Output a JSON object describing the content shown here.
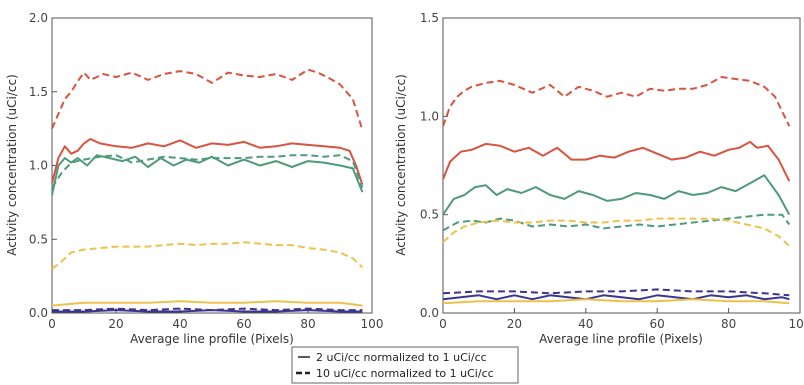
{
  "legend": {
    "entries": [
      {
        "style": "thin-dash",
        "label": "2 uCi/cc normalized to 1 uCi/cc"
      },
      {
        "style": "thick-dash",
        "label": "10 uCi/cc normalized to 1 uCi/cc"
      }
    ]
  },
  "colors": {
    "red": "#d9533f",
    "green": "#4e9a7a",
    "yellow": "#ecc24a",
    "blue": "#3b3590",
    "axis": "#555555"
  },
  "chart_data": [
    {
      "type": "line",
      "xlabel": "Average line profile (Pixels)",
      "ylabel": "Activity concentration (uCi/cc)",
      "xlim": [
        0,
        100
      ],
      "ylim": [
        0,
        2.0
      ],
      "xticks": [
        0,
        20,
        40,
        60,
        80,
        100
      ],
      "yticks": [
        "0.0",
        "0.5",
        "1.0",
        "1.5",
        "2.0"
      ],
      "series": [
        {
          "color": "red",
          "dash": true,
          "x": [
            0,
            2,
            4,
            6,
            8,
            10,
            12,
            14,
            16,
            20,
            25,
            30,
            35,
            40,
            45,
            50,
            55,
            60,
            65,
            70,
            75,
            80,
            83,
            86,
            90,
            94,
            97
          ],
          "y": [
            1.25,
            1.35,
            1.45,
            1.5,
            1.57,
            1.63,
            1.58,
            1.6,
            1.62,
            1.6,
            1.63,
            1.58,
            1.62,
            1.64,
            1.62,
            1.56,
            1.63,
            1.61,
            1.6,
            1.62,
            1.58,
            1.65,
            1.63,
            1.6,
            1.55,
            1.45,
            1.24
          ]
        },
        {
          "color": "red",
          "dash": false,
          "x": [
            0,
            2,
            4,
            6,
            8,
            10,
            12,
            15,
            20,
            25,
            30,
            35,
            40,
            45,
            50,
            55,
            60,
            65,
            70,
            75,
            80,
            85,
            90,
            93,
            95,
            97
          ],
          "y": [
            0.88,
            1.05,
            1.13,
            1.08,
            1.1,
            1.15,
            1.18,
            1.15,
            1.13,
            1.12,
            1.15,
            1.13,
            1.17,
            1.12,
            1.15,
            1.14,
            1.16,
            1.12,
            1.13,
            1.15,
            1.14,
            1.13,
            1.12,
            1.1,
            1.0,
            0.87
          ]
        },
        {
          "color": "green",
          "dash": true,
          "x": [
            0,
            3,
            6,
            10,
            15,
            20,
            25,
            30,
            35,
            40,
            45,
            50,
            55,
            60,
            65,
            70,
            75,
            80,
            85,
            90,
            94,
            97
          ],
          "y": [
            0.85,
            0.95,
            1.02,
            1.04,
            1.06,
            1.07,
            1.02,
            1.04,
            1.06,
            1.05,
            1.04,
            1.05,
            1.05,
            1.05,
            1.06,
            1.06,
            1.07,
            1.07,
            1.06,
            1.07,
            1.03,
            0.85
          ]
        },
        {
          "color": "green",
          "dash": false,
          "x": [
            0,
            2,
            4,
            6,
            8,
            11,
            14,
            18,
            22,
            26,
            30,
            34,
            38,
            42,
            46,
            50,
            55,
            60,
            65,
            70,
            75,
            80,
            85,
            90,
            94,
            97
          ],
          "y": [
            0.8,
            1.0,
            1.05,
            1.02,
            1.05,
            1.0,
            1.07,
            1.05,
            1.03,
            1.06,
            0.99,
            1.05,
            1.0,
            1.04,
            1.02,
            1.06,
            1.0,
            1.04,
            1.0,
            1.03,
            0.99,
            1.03,
            1.02,
            1.0,
            0.98,
            0.82
          ]
        },
        {
          "color": "yellow",
          "dash": true,
          "x": [
            0,
            3,
            6,
            10,
            15,
            20,
            25,
            30,
            35,
            40,
            45,
            50,
            55,
            60,
            65,
            70,
            75,
            80,
            85,
            90,
            94,
            97
          ],
          "y": [
            0.3,
            0.35,
            0.41,
            0.43,
            0.44,
            0.45,
            0.45,
            0.45,
            0.46,
            0.47,
            0.46,
            0.47,
            0.47,
            0.48,
            0.47,
            0.46,
            0.46,
            0.44,
            0.43,
            0.41,
            0.37,
            0.31
          ]
        },
        {
          "color": "yellow",
          "dash": false,
          "x": [
            0,
            5,
            10,
            20,
            30,
            40,
            50,
            60,
            70,
            80,
            90,
            97
          ],
          "y": [
            0.05,
            0.06,
            0.07,
            0.07,
            0.07,
            0.08,
            0.07,
            0.07,
            0.08,
            0.07,
            0.07,
            0.05
          ]
        },
        {
          "color": "blue",
          "dash": true,
          "x": [
            0,
            10,
            20,
            30,
            40,
            50,
            60,
            70,
            80,
            90,
            97
          ],
          "y": [
            0.02,
            0.02,
            0.03,
            0.02,
            0.03,
            0.02,
            0.03,
            0.02,
            0.03,
            0.02,
            0.02
          ]
        },
        {
          "color": "blue",
          "dash": false,
          "x": [
            0,
            10,
            20,
            30,
            40,
            50,
            60,
            70,
            80,
            90,
            97
          ],
          "y": [
            0.01,
            0.01,
            0.02,
            0.01,
            0.01,
            0.02,
            0.01,
            0.01,
            0.02,
            0.01,
            0.01
          ]
        }
      ]
    },
    {
      "type": "line",
      "xlabel": "Average line profile (Pixels)",
      "ylabel": "Activity concentration (uCi/cc)",
      "xlim": [
        0,
        100
      ],
      "ylim": [
        0,
        1.5
      ],
      "xticks": [
        0,
        20,
        40,
        60,
        80,
        100
      ],
      "yticks": [
        "0.0",
        "0.5",
        "1.0",
        "1.5"
      ],
      "series": [
        {
          "color": "red",
          "dash": true,
          "x": [
            0,
            2,
            4,
            6,
            8,
            12,
            16,
            20,
            25,
            30,
            34,
            38,
            42,
            46,
            50,
            54,
            58,
            62,
            66,
            70,
            74,
            78,
            82,
            86,
            90,
            93,
            97
          ],
          "y": [
            0.95,
            1.05,
            1.1,
            1.13,
            1.15,
            1.17,
            1.18,
            1.16,
            1.12,
            1.16,
            1.1,
            1.15,
            1.13,
            1.1,
            1.12,
            1.1,
            1.14,
            1.13,
            1.14,
            1.14,
            1.16,
            1.2,
            1.19,
            1.18,
            1.15,
            1.1,
            0.95
          ]
        },
        {
          "color": "red",
          "dash": false,
          "x": [
            0,
            2,
            5,
            8,
            12,
            16,
            20,
            24,
            28,
            32,
            36,
            40,
            44,
            48,
            52,
            56,
            60,
            64,
            68,
            72,
            76,
            80,
            83,
            86,
            88,
            91,
            94,
            97
          ],
          "y": [
            0.68,
            0.77,
            0.82,
            0.83,
            0.86,
            0.85,
            0.82,
            0.84,
            0.8,
            0.84,
            0.78,
            0.78,
            0.8,
            0.79,
            0.82,
            0.84,
            0.81,
            0.78,
            0.79,
            0.82,
            0.8,
            0.83,
            0.84,
            0.87,
            0.84,
            0.85,
            0.78,
            0.67
          ]
        },
        {
          "color": "green",
          "dash": false,
          "x": [
            0,
            3,
            6,
            9,
            12,
            15,
            18,
            22,
            26,
            30,
            34,
            38,
            42,
            46,
            50,
            54,
            58,
            62,
            66,
            70,
            74,
            78,
            82,
            86,
            90,
            94,
            97
          ],
          "y": [
            0.5,
            0.58,
            0.6,
            0.64,
            0.65,
            0.6,
            0.63,
            0.61,
            0.64,
            0.6,
            0.58,
            0.62,
            0.6,
            0.57,
            0.58,
            0.61,
            0.6,
            0.58,
            0.62,
            0.6,
            0.61,
            0.64,
            0.62,
            0.66,
            0.7,
            0.6,
            0.5
          ]
        },
        {
          "color": "green",
          "dash": true,
          "x": [
            0,
            4,
            8,
            12,
            16,
            20,
            25,
            30,
            35,
            40,
            45,
            50,
            55,
            60,
            65,
            70,
            75,
            80,
            85,
            90,
            95,
            97
          ],
          "y": [
            0.42,
            0.46,
            0.47,
            0.46,
            0.48,
            0.47,
            0.44,
            0.45,
            0.44,
            0.45,
            0.43,
            0.44,
            0.45,
            0.44,
            0.45,
            0.46,
            0.47,
            0.48,
            0.49,
            0.5,
            0.5,
            0.45
          ]
        },
        {
          "color": "yellow",
          "dash": true,
          "x": [
            0,
            3,
            6,
            10,
            15,
            20,
            25,
            30,
            35,
            40,
            45,
            50,
            55,
            60,
            65,
            70,
            75,
            80,
            85,
            90,
            94,
            97
          ],
          "y": [
            0.36,
            0.41,
            0.44,
            0.46,
            0.47,
            0.46,
            0.46,
            0.47,
            0.47,
            0.46,
            0.46,
            0.47,
            0.47,
            0.48,
            0.48,
            0.48,
            0.48,
            0.47,
            0.45,
            0.43,
            0.39,
            0.34
          ]
        },
        {
          "color": "blue",
          "dash": true,
          "x": [
            0,
            10,
            20,
            30,
            40,
            50,
            60,
            70,
            80,
            90,
            97
          ],
          "y": [
            0.1,
            0.11,
            0.11,
            0.1,
            0.11,
            0.11,
            0.12,
            0.11,
            0.11,
            0.1,
            0.09
          ]
        },
        {
          "color": "blue",
          "dash": false,
          "x": [
            0,
            5,
            10,
            15,
            20,
            25,
            30,
            35,
            40,
            45,
            50,
            55,
            60,
            65,
            70,
            75,
            80,
            85,
            90,
            95,
            97
          ],
          "y": [
            0.07,
            0.08,
            0.09,
            0.07,
            0.09,
            0.07,
            0.09,
            0.08,
            0.07,
            0.09,
            0.08,
            0.07,
            0.09,
            0.08,
            0.07,
            0.09,
            0.08,
            0.09,
            0.07,
            0.08,
            0.07
          ]
        },
        {
          "color": "yellow",
          "dash": false,
          "x": [
            0,
            10,
            20,
            30,
            40,
            50,
            60,
            70,
            80,
            90,
            97
          ],
          "y": [
            0.05,
            0.06,
            0.06,
            0.06,
            0.07,
            0.06,
            0.06,
            0.07,
            0.06,
            0.06,
            0.05
          ]
        }
      ]
    }
  ]
}
